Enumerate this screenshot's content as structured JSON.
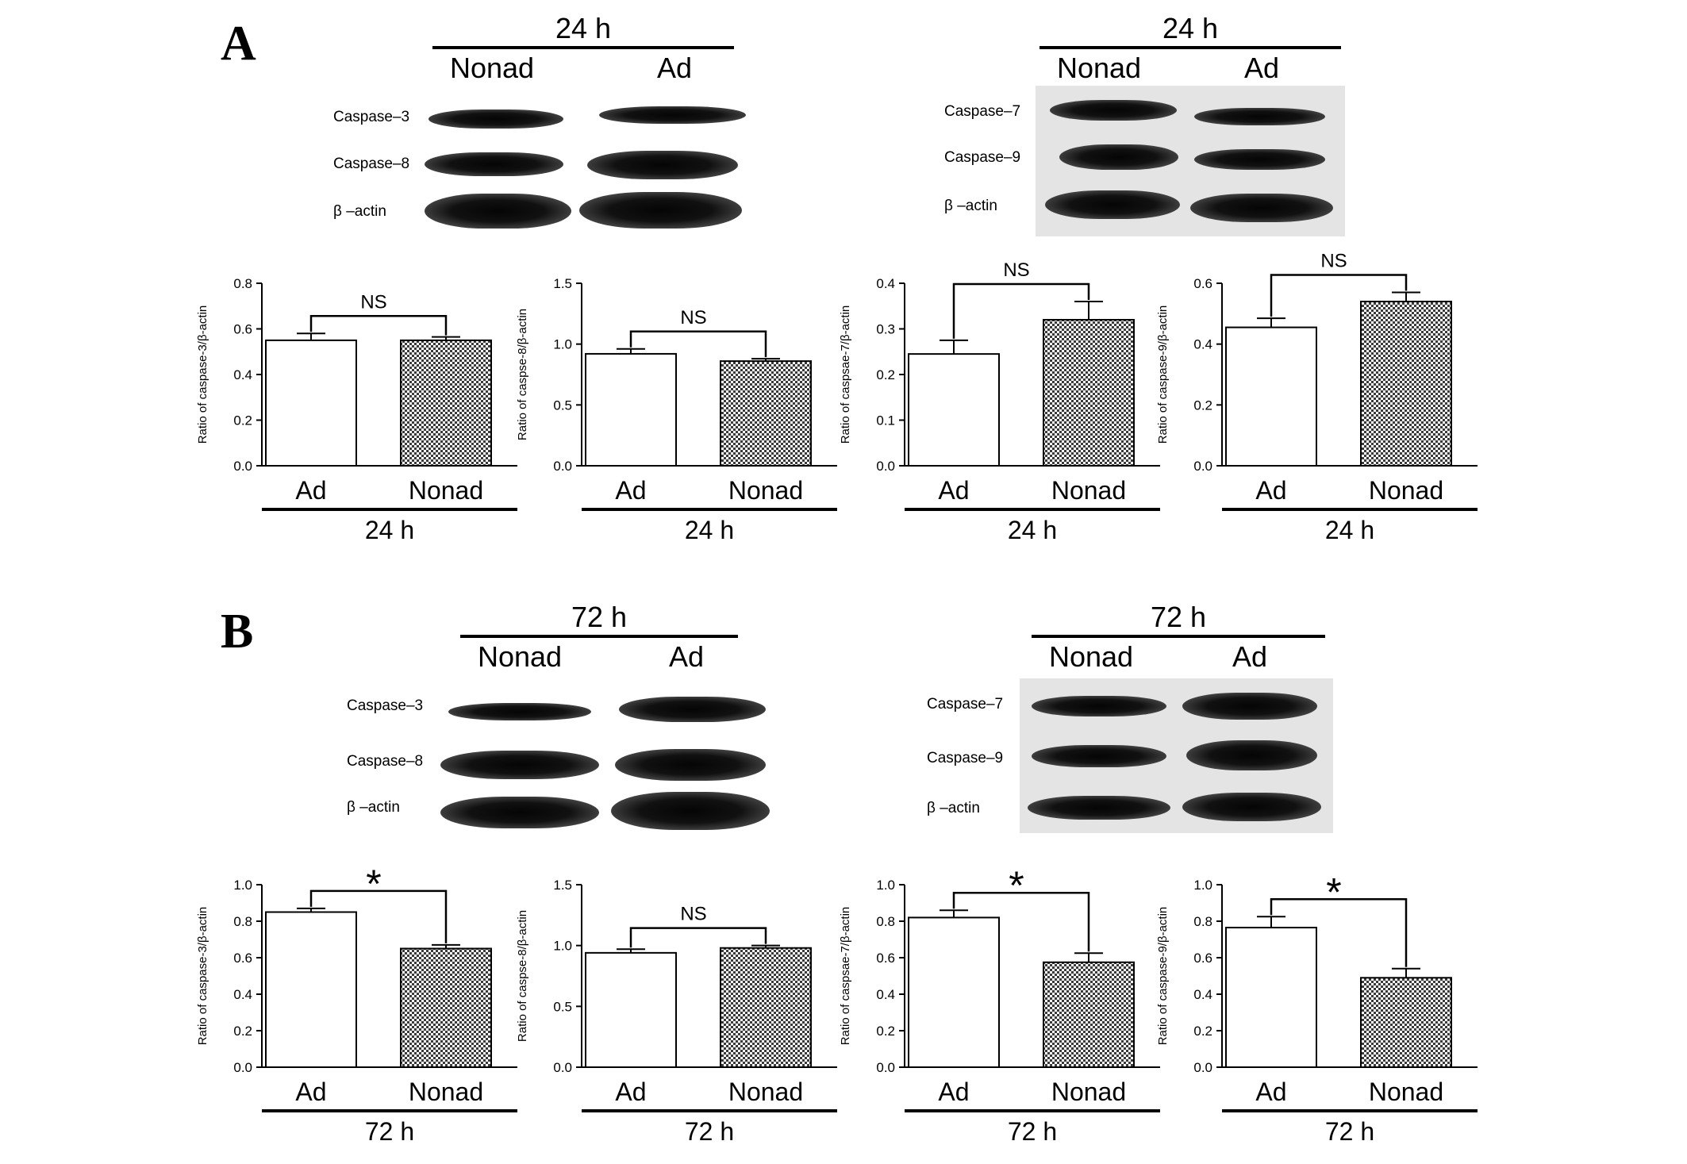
{
  "panels": [
    {
      "letter": "A",
      "blots": [
        {
          "time": "24 h",
          "lanes": [
            "Nonad",
            "Ad"
          ],
          "rows": [
            "Caspase–3",
            "Caspase–8",
            "β –actin"
          ]
        },
        {
          "time": "24 h",
          "lanes": [
            "Nonad",
            "Ad"
          ],
          "rows": [
            "Caspase–7",
            "Caspase–9",
            "β –actin"
          ]
        }
      ]
    },
    {
      "letter": "B",
      "blots": [
        {
          "time": "72 h",
          "lanes": [
            "Nonad",
            "Ad"
          ],
          "rows": [
            "Caspase–3",
            "Caspase–8",
            "β –actin"
          ]
        },
        {
          "time": "72 h",
          "lanes": [
            "Nonad",
            "Ad"
          ],
          "rows": [
            "Caspase–7",
            "Caspase–9",
            "β –actin"
          ]
        }
      ]
    }
  ],
  "colors": {
    "ad_bar": "#ffffff",
    "nonad_bar": "#8c8c8c",
    "text": "#000000"
  },
  "chart_data": [
    {
      "type": "bar",
      "categories": [
        "Ad",
        "Nonad"
      ],
      "values": [
        0.55,
        0.55
      ],
      "errors": [
        0.03,
        0.015
      ],
      "ylabel": "Ratio of caspase-3/β-actin",
      "ylim": [
        0,
        0.8
      ],
      "yticks": [
        "0.0",
        "0.2",
        "0.4",
        "0.6",
        "0.8"
      ],
      "annotation": "NS",
      "time_label": "24 h"
    },
    {
      "type": "bar",
      "categories": [
        "Ad",
        "Nonad"
      ],
      "values": [
        0.92,
        0.86
      ],
      "errors": [
        0.04,
        0.02
      ],
      "ylabel": "Ratio of caspse-8/β-actin",
      "ylim": [
        0,
        1.5
      ],
      "yticks": [
        "0.0",
        "0.5",
        "1.0",
        "1.5"
      ],
      "annotation": "NS",
      "time_label": "24 h"
    },
    {
      "type": "bar",
      "categories": [
        "Ad",
        "Nonad"
      ],
      "values": [
        0.245,
        0.32
      ],
      "errors": [
        0.03,
        0.04
      ],
      "ylabel": "Ratio of caspsae-7/β-actin",
      "ylim": [
        0,
        0.4
      ],
      "yticks": [
        "0.0",
        "0.1",
        "0.2",
        "0.3",
        "0.4"
      ],
      "annotation": "NS",
      "time_label": "24 h"
    },
    {
      "type": "bar",
      "categories": [
        "Ad",
        "Nonad"
      ],
      "values": [
        0.455,
        0.54
      ],
      "errors": [
        0.03,
        0.03
      ],
      "ylabel": "Ratio of caspase-9/β-actin",
      "ylim": [
        0,
        0.6
      ],
      "yticks": [
        "0.0",
        "0.2",
        "0.4",
        "0.6"
      ],
      "annotation": "NS",
      "time_label": "24 h"
    },
    {
      "type": "bar",
      "categories": [
        "Ad",
        "Nonad"
      ],
      "values": [
        0.85,
        0.65
      ],
      "errors": [
        0.02,
        0.02
      ],
      "ylabel": "Ratio of caspase-3/β-actin",
      "ylim": [
        0,
        1.0
      ],
      "yticks": [
        "0.0",
        "0.2",
        "0.4",
        "0.6",
        "0.8",
        "1.0"
      ],
      "annotation": "*",
      "time_label": "72 h"
    },
    {
      "type": "bar",
      "categories": [
        "Ad",
        "Nonad"
      ],
      "values": [
        0.94,
        0.98
      ],
      "errors": [
        0.03,
        0.02
      ],
      "ylabel": "Ratio of caspse-8/β-actin",
      "ylim": [
        0,
        1.5
      ],
      "yticks": [
        "0.0",
        "0.5",
        "1.0",
        "1.5"
      ],
      "annotation": "NS",
      "time_label": "72 h"
    },
    {
      "type": "bar",
      "categories": [
        "Ad",
        "Nonad"
      ],
      "values": [
        0.82,
        0.575
      ],
      "errors": [
        0.04,
        0.05
      ],
      "ylabel": "Ratio of caspsae-7/β-actin",
      "ylim": [
        0,
        1.0
      ],
      "yticks": [
        "0.0",
        "0.2",
        "0.4",
        "0.6",
        "0.8",
        "1.0"
      ],
      "annotation": "*",
      "time_label": "72 h"
    },
    {
      "type": "bar",
      "categories": [
        "Ad",
        "Nonad"
      ],
      "values": [
        0.765,
        0.49
      ],
      "errors": [
        0.06,
        0.05
      ],
      "ylabel": "Ratio of caspase-9/β-actin",
      "ylim": [
        0,
        1.0
      ],
      "yticks": [
        "0.0",
        "0.2",
        "0.4",
        "0.6",
        "0.8",
        "1.0"
      ],
      "annotation": "*",
      "time_label": "72 h"
    }
  ]
}
